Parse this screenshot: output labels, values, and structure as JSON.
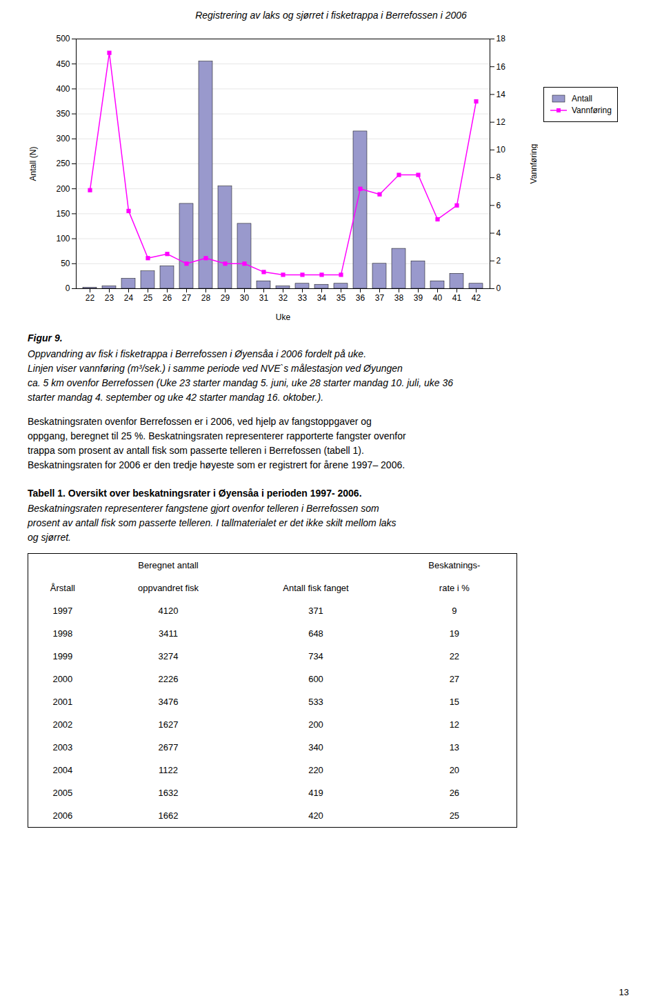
{
  "chart_data": [
    {
      "type": "bar",
      "title": "Registrering av laks og sjørret i fisketrappa i Berrefossen i 2006",
      "categories": [
        22,
        23,
        24,
        25,
        26,
        27,
        28,
        29,
        30,
        31,
        32,
        33,
        34,
        35,
        36,
        37,
        38,
        39,
        40,
        41,
        42
      ],
      "series": [
        {
          "name": "Antall",
          "type": "bar",
          "color": "#9999cc",
          "values": [
            2,
            5,
            20,
            35,
            45,
            170,
            455,
            205,
            130,
            15,
            5,
            10,
            8,
            10,
            315,
            50,
            80,
            55,
            15,
            30,
            10
          ]
        },
        {
          "name": "Vannføring",
          "type": "line",
          "axis": "y2",
          "color": "#ff00ff",
          "marker": "square",
          "values": [
            7.1,
            17.0,
            5.6,
            2.2,
            2.5,
            1.8,
            2.2,
            1.8,
            1.8,
            1.2,
            1.0,
            1.0,
            1.0,
            1.0,
            7.2,
            6.8,
            8.2,
            8.2,
            5.0,
            6.0,
            13.5
          ]
        }
      ],
      "xlabel": "Uke",
      "ylabel": "Antall (N)",
      "y2label": "Vannføring",
      "ylim": [
        0,
        500
      ],
      "yticks": [
        0,
        50,
        100,
        150,
        200,
        250,
        300,
        350,
        400,
        450,
        500
      ],
      "y2lim": [
        0,
        18
      ],
      "y2ticks": [
        0,
        2,
        4,
        6,
        8,
        10,
        12,
        14,
        16,
        18
      ],
      "grid": true,
      "legend": "right",
      "annotations": [
        "Figur 9.",
        "Oppvandring av fisk i fisketrappa i Berrefossen i Øyensåa i 2006 fordelt på uke.\nLinjen viser vannføring (m³/sek.) i samme periode ved NVE`s målestasjon ved Øyungen\nca. 5 km ovenfor Berrefossen (Uke 23 starter mandag 5. juni, uke 28 starter mandag 10. juli, uke 36\nstarter mandag 4. september og uke 42 starter mandag 16. oktober.).",
        "Beskatningsraten ovenfor Berrefossen er i 2006, ved hjelp av fangstoppgaver og\noppgang, beregnet til 25 %. Beskatningsraten representerer rapporterte fangster ovenfor\ntrappa som prosent av antall fisk som passerte telleren i Berrefossen (​tabell 1​).\nBeskatningsraten for 2006 er den tredje høyeste som er registrert for årene 1997– 2006."
      ]
    },
    {
      "type": "table",
      "title": "Tabell 1. Oversikt over beskatningsrater i Øyensåa i perioden 1997- 2006.",
      "annotations": [
        "Beskatningsraten representerer fangstene gjort ovenfor telleren i Berrefossen som\nprosent av antall fisk som passerte telleren. I tallmaterialet er det ikke skilt mellom laks\nog sjørret."
      ],
      "header": [
        [
          null,
          "Beregnet antall",
          null,
          "Beskatnings-"
        ],
        [
          "Årstall",
          "oppvandret fisk",
          "Antall fisk fanget",
          "rate i %"
        ]
      ],
      "rows": [
        [
          1997,
          4120,
          371,
          9
        ],
        [
          1998,
          3411,
          648,
          19
        ],
        [
          1999,
          3274,
          734,
          22
        ],
        [
          2000,
          2226,
          600,
          27
        ],
        [
          2001,
          3476,
          533,
          15
        ],
        [
          2002,
          1627,
          200,
          12
        ],
        [
          2003,
          2677,
          340,
          13
        ],
        [
          2004,
          1122,
          220,
          20
        ],
        [
          2005,
          1632,
          419,
          26
        ],
        [
          2006,
          1662,
          420,
          25
        ]
      ],
      "footer": "13"
    }
  ]
}
